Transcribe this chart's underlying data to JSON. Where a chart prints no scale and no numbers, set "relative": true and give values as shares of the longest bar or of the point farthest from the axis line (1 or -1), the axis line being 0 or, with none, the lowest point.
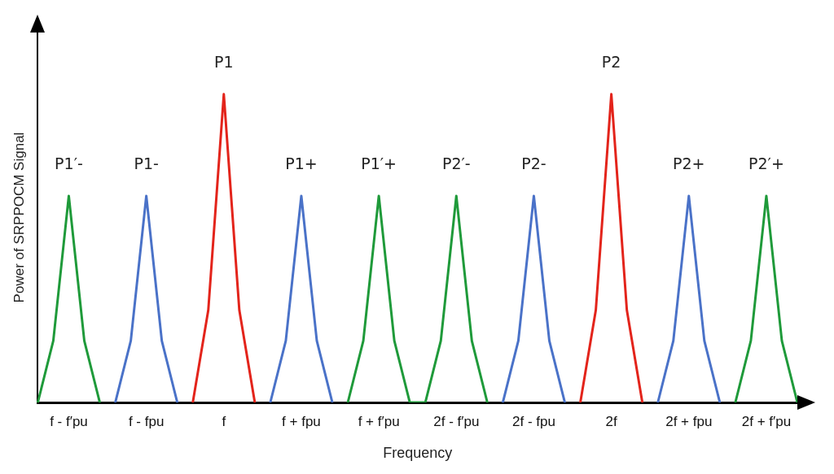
{
  "chart_data": {
    "type": "line",
    "relative": true,
    "xlabel": "Frequency",
    "ylabel": "Power of SRPPOCM Signal",
    "categories": [
      null,
      null,
      "f - f′pu",
      null,
      null,
      null,
      null,
      "f - fpu",
      null,
      null,
      null,
      null,
      "f",
      null,
      null,
      null,
      null,
      "f + fpu",
      null,
      null,
      null,
      null,
      "f + f′pu",
      null,
      null,
      null,
      null,
      "2f - f′pu",
      null,
      null,
      null,
      null,
      "2f - fpu",
      null,
      null,
      null,
      null,
      "2f",
      null,
      null,
      null,
      null,
      "2f + fpu",
      null,
      null,
      null,
      null,
      "2f + f′pu",
      null,
      null
    ],
    "series": [
      {
        "color": "#1f9a3a",
        "values": [
          0,
          0.2,
          0.67,
          0.2,
          0,
          null,
          null,
          null,
          null,
          null,
          null,
          null,
          null,
          null,
          null,
          null,
          null,
          null,
          null,
          null,
          0,
          0.2,
          0.67,
          0.2,
          0,
          0,
          0.2,
          0.67,
          0.2,
          0,
          null,
          null,
          null,
          null,
          null,
          null,
          null,
          null,
          null,
          null,
          null,
          null,
          null,
          null,
          null,
          0,
          0.2,
          0.67,
          0.2,
          0
        ]
      },
      {
        "color": "#4a72c8",
        "values": [
          null,
          null,
          null,
          null,
          null,
          0,
          0.2,
          0.67,
          0.2,
          0,
          null,
          null,
          null,
          null,
          null,
          0,
          0.2,
          0.67,
          0.2,
          0,
          null,
          null,
          null,
          null,
          null,
          null,
          null,
          null,
          null,
          null,
          0,
          0.2,
          0.67,
          0.2,
          0,
          null,
          null,
          null,
          null,
          null,
          0,
          0.2,
          0.67,
          0.2,
          0,
          null,
          null,
          null,
          null,
          null
        ]
      },
      {
        "color": "#e3241b",
        "values": [
          null,
          null,
          null,
          null,
          null,
          null,
          null,
          null,
          null,
          null,
          0,
          0.3,
          1,
          0.3,
          0,
          null,
          null,
          null,
          null,
          null,
          null,
          null,
          null,
          null,
          null,
          null,
          null,
          null,
          null,
          null,
          null,
          null,
          null,
          null,
          null,
          0,
          0.3,
          1,
          0.3,
          0,
          null,
          null,
          null,
          null,
          null,
          null,
          null,
          null,
          null,
          null
        ]
      }
    ],
    "annotations": [
      {
        "text": "P1′-",
        "x": "f - f′pu",
        "y": 0.67
      },
      {
        "text": "P1-",
        "x": "f - fpu",
        "y": 0.67
      },
      {
        "text": "P1",
        "x": "f",
        "y": 1
      },
      {
        "text": "P1+",
        "x": "f + fpu",
        "y": 0.67
      },
      {
        "text": "P1′+",
        "x": "f + f′pu",
        "y": 0.67
      },
      {
        "text": "P2′-",
        "x": "2f - f′pu",
        "y": 0.67
      },
      {
        "text": "P2-",
        "x": "2f - fpu",
        "y": 0.67
      },
      {
        "text": "P2",
        "x": "2f",
        "y": 1
      },
      {
        "text": "P2+",
        "x": "2f + fpu",
        "y": 0.67
      },
      {
        "text": "P2′+",
        "x": "2f + f′pu",
        "y": 0.67
      }
    ],
    "marker": "none",
    "grid": false,
    "legend": false,
    "tick_labels": "x"
  }
}
